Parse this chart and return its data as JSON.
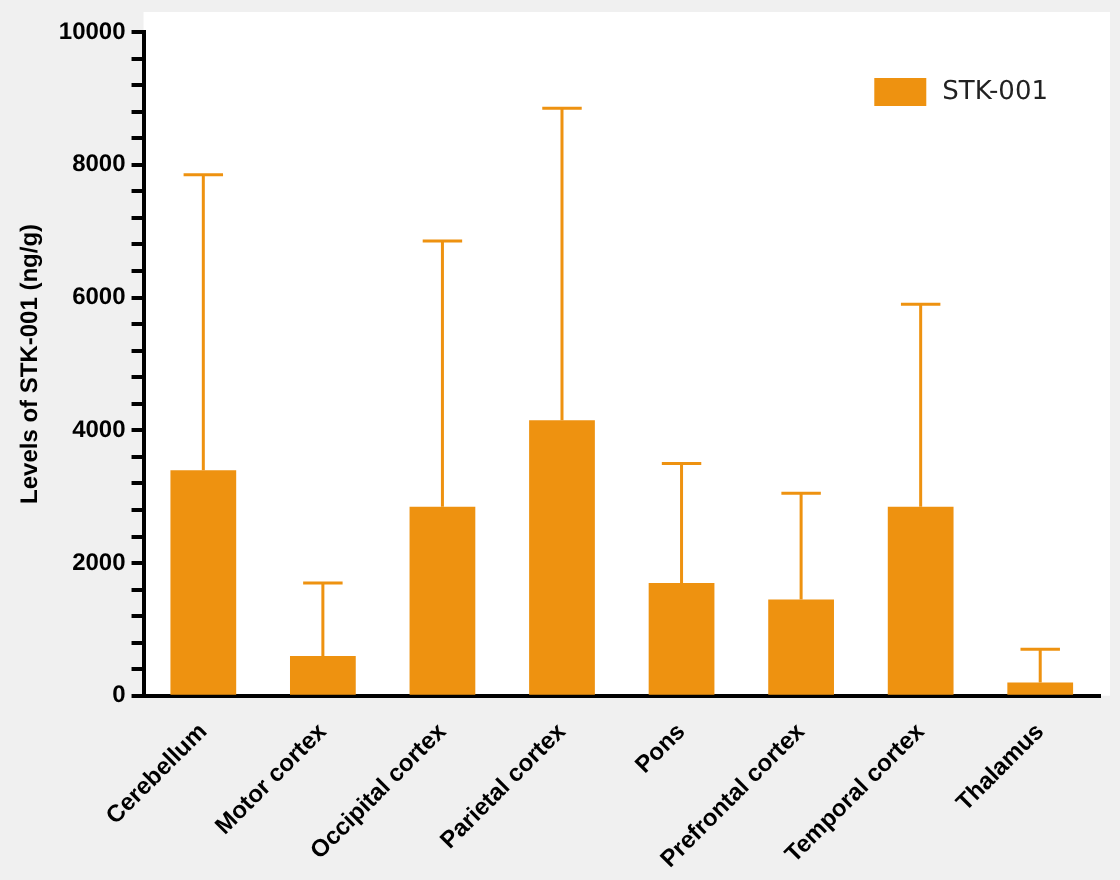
{
  "chart_data": {
    "type": "bar",
    "ylabel": "Levels of STK-001 (ng/g)",
    "categories": [
      "Cerebellum",
      "Motor cortex",
      "Occipital cortex",
      "Parietal cortex",
      "Pons",
      "Prefrontal cortex",
      "Temporal cortex",
      "Thalamus"
    ],
    "series": [
      {
        "name": "STK-001",
        "color": "#ee9210",
        "values": [
          3400,
          600,
          2850,
          4150,
          1700,
          1450,
          2850,
          200
        ],
        "errors": [
          [
            3400,
            7850
          ],
          [
            600,
            1700
          ],
          [
            2850,
            6850
          ],
          [
            4150,
            8850
          ],
          [
            1700,
            3500
          ],
          [
            1450,
            3050
          ],
          [
            2850,
            5900
          ],
          [
            200,
            700
          ]
        ]
      }
    ],
    "ylim": [
      0,
      10000
    ],
    "yticks": [
      0,
      {
        "value": 400,
        "label": null
      },
      {
        "value": 800,
        "label": null
      },
      {
        "value": 1200,
        "label": null
      },
      {
        "value": 1600,
        "label": null
      },
      2000,
      {
        "value": 2400,
        "label": null
      },
      {
        "value": 2800,
        "label": null
      },
      {
        "value": 3200,
        "label": null
      },
      {
        "value": 3600,
        "label": null
      },
      4000,
      {
        "value": 4400,
        "label": null
      },
      {
        "value": 4800,
        "label": null
      },
      {
        "value": 5200,
        "label": null
      },
      {
        "value": 5600,
        "label": null
      },
      6000,
      {
        "value": 6400,
        "label": null
      },
      {
        "value": 6800,
        "label": null
      },
      {
        "value": 7200,
        "label": null
      },
      {
        "value": 7600,
        "label": null
      },
      8000,
      {
        "value": 8400,
        "label": null
      },
      {
        "value": 8800,
        "label": null
      },
      {
        "value": 9200,
        "label": null
      },
      {
        "value": 9600,
        "label": null
      },
      10000
    ],
    "grid": false,
    "legend": "top right"
  }
}
